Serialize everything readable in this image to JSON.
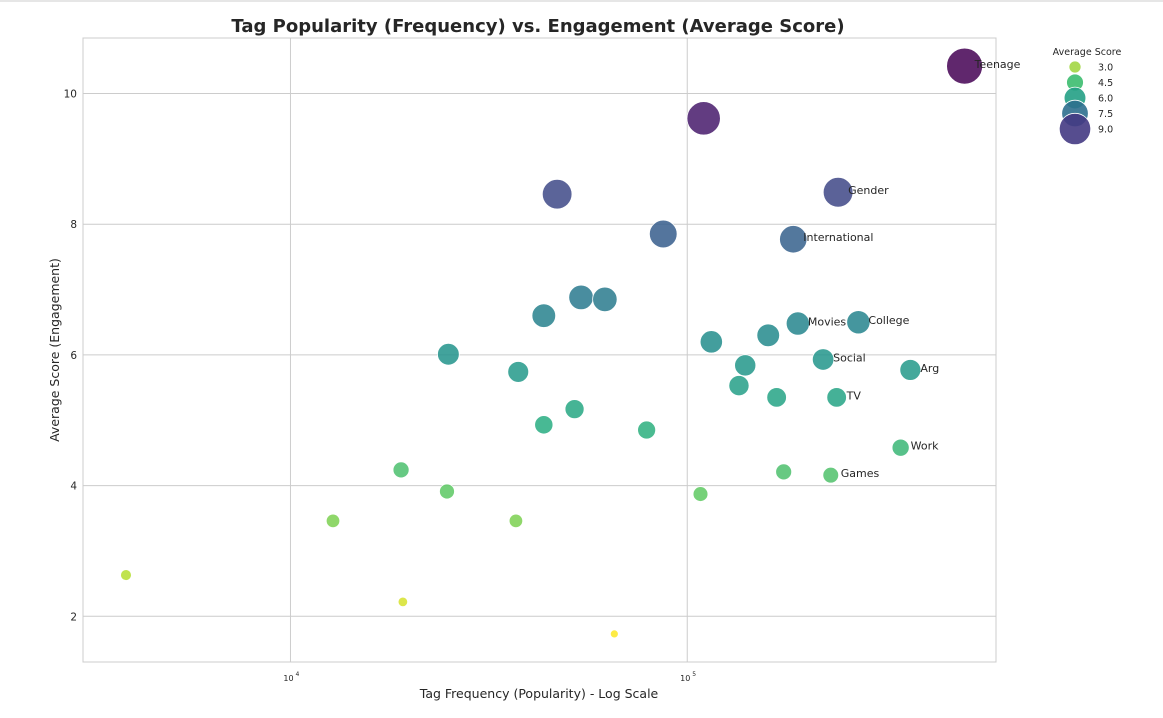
{
  "chart_data": {
    "type": "scatter",
    "title": "Tag Popularity (Frequency) vs. Engagement (Average Score)",
    "xlabel": "Tag Frequency (Popularity) - Log Scale",
    "ylabel": "Average Score (Engagement)",
    "xscale": "log",
    "xlim": [
      3000,
      600000
    ],
    "ylim": [
      1.3,
      10.85
    ],
    "x_ticks": [
      {
        "value": 10000,
        "base": "10",
        "exp": "4"
      },
      {
        "value": 100000,
        "base": "10",
        "exp": "5"
      }
    ],
    "y_ticks": [
      {
        "value": 2,
        "label": "2"
      },
      {
        "value": 4,
        "label": "4"
      },
      {
        "value": 6,
        "label": "6"
      },
      {
        "value": 8,
        "label": "8"
      },
      {
        "value": 10,
        "label": "10"
      }
    ],
    "grid": true,
    "colormap": "viridis",
    "size_encodes": "Average Score",
    "legend": {
      "title": "Average Score",
      "position": "outside-top-right",
      "entries": [
        {
          "value": 3.0,
          "label": "3.0",
          "color": "#a2d643"
        },
        {
          "value": 4.5,
          "label": "4.5",
          "color": "#3cbd6f"
        },
        {
          "value": 6.0,
          "label": "6.0",
          "color": "#23a085"
        },
        {
          "value": 7.5,
          "label": "7.5",
          "color": "#2e6f8e"
        },
        {
          "value": 9.0,
          "label": "9.0",
          "color": "#443a83"
        }
      ]
    },
    "points": [
      {
        "x": 500000,
        "y": 10.42,
        "label": "Teenage"
      },
      {
        "x": 110000,
        "y": 9.62,
        "label": ""
      },
      {
        "x": 240000,
        "y": 8.49,
        "label": "Gender"
      },
      {
        "x": 47000,
        "y": 8.46,
        "label": ""
      },
      {
        "x": 87000,
        "y": 7.85,
        "label": ""
      },
      {
        "x": 185000,
        "y": 7.77,
        "label": "International"
      },
      {
        "x": 54000,
        "y": 6.88,
        "label": ""
      },
      {
        "x": 62000,
        "y": 6.85,
        "label": ""
      },
      {
        "x": 43500,
        "y": 6.6,
        "label": ""
      },
      {
        "x": 190000,
        "y": 6.48,
        "label": "Movies"
      },
      {
        "x": 270000,
        "y": 6.5,
        "label": "College"
      },
      {
        "x": 160000,
        "y": 6.3,
        "label": ""
      },
      {
        "x": 115000,
        "y": 6.2,
        "label": ""
      },
      {
        "x": 25000,
        "y": 6.01,
        "label": ""
      },
      {
        "x": 220000,
        "y": 5.93,
        "label": "Social"
      },
      {
        "x": 140000,
        "y": 5.84,
        "label": ""
      },
      {
        "x": 37500,
        "y": 5.74,
        "label": ""
      },
      {
        "x": 365000,
        "y": 5.77,
        "label": "Arg"
      },
      {
        "x": 135000,
        "y": 5.53,
        "label": ""
      },
      {
        "x": 168000,
        "y": 5.35,
        "label": ""
      },
      {
        "x": 238000,
        "y": 5.35,
        "label": "TV"
      },
      {
        "x": 52000,
        "y": 5.17,
        "label": ""
      },
      {
        "x": 43500,
        "y": 4.93,
        "label": ""
      },
      {
        "x": 79000,
        "y": 4.85,
        "label": ""
      },
      {
        "x": 345000,
        "y": 4.58,
        "label": "Work"
      },
      {
        "x": 19000,
        "y": 4.24,
        "label": ""
      },
      {
        "x": 175000,
        "y": 4.21,
        "label": ""
      },
      {
        "x": 230000,
        "y": 4.16,
        "label": "Games"
      },
      {
        "x": 24800,
        "y": 3.91,
        "label": ""
      },
      {
        "x": 108000,
        "y": 3.87,
        "label": ""
      },
      {
        "x": 12800,
        "y": 3.46,
        "label": ""
      },
      {
        "x": 37000,
        "y": 3.46,
        "label": ""
      },
      {
        "x": 3850,
        "y": 2.63,
        "label": ""
      },
      {
        "x": 19200,
        "y": 2.22,
        "label": ""
      },
      {
        "x": 65500,
        "y": 1.73,
        "label": ""
      }
    ]
  }
}
